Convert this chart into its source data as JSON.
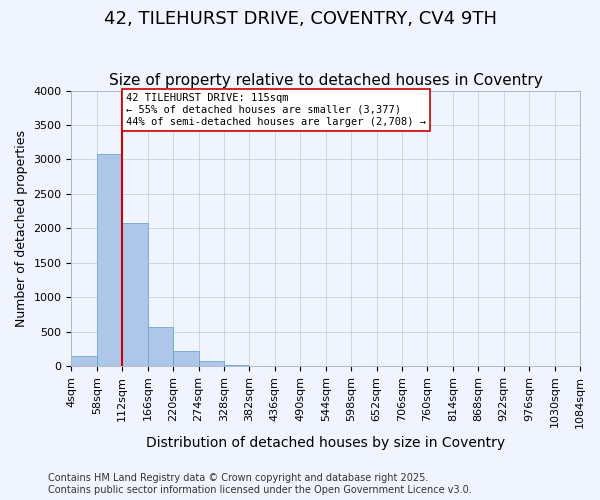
{
  "title": "42, TILEHURST DRIVE, COVENTRY, CV4 9TH",
  "subtitle": "Size of property relative to detached houses in Coventry",
  "xlabel": "Distribution of detached houses by size in Coventry",
  "ylabel": "Number of detached properties",
  "bin_edges": [
    "4sqm",
    "58sqm",
    "112sqm",
    "166sqm",
    "220sqm",
    "274sqm",
    "328sqm",
    "382sqm",
    "436sqm",
    "490sqm",
    "544sqm",
    "598sqm",
    "652sqm",
    "706sqm",
    "760sqm",
    "814sqm",
    "868sqm",
    "922sqm",
    "976sqm",
    "1030sqm",
    "1084sqm"
  ],
  "bar_values": [
    150,
    3080,
    2080,
    560,
    220,
    65,
    10,
    3,
    0,
    0,
    0,
    0,
    0,
    0,
    0,
    0,
    0,
    0,
    0,
    0
  ],
  "bar_color": "#aec6e8",
  "bar_edge_color": "#5a9fd4",
  "background_color": "#f0f4ff",
  "grid_color": "#c0c8e0",
  "vline_x": 2.0,
  "vline_color": "#cc0000",
  "annotation_text": "42 TILEHURST DRIVE: 115sqm\n← 55% of detached houses are smaller (3,377)\n44% of semi-detached houses are larger (2,708) →",
  "annotation_box_color": "#ffffff",
  "annotation_box_edge": "#cc0000",
  "ylim": [
    0,
    4000
  ],
  "yticks": [
    0,
    500,
    1000,
    1500,
    2000,
    2500,
    3000,
    3500,
    4000
  ],
  "footer": "Contains HM Land Registry data © Crown copyright and database right 2025.\nContains public sector information licensed under the Open Government Licence v3.0.",
  "title_fontsize": 13,
  "subtitle_fontsize": 11,
  "xlabel_fontsize": 10,
  "ylabel_fontsize": 9,
  "tick_fontsize": 8,
  "footer_fontsize": 7
}
